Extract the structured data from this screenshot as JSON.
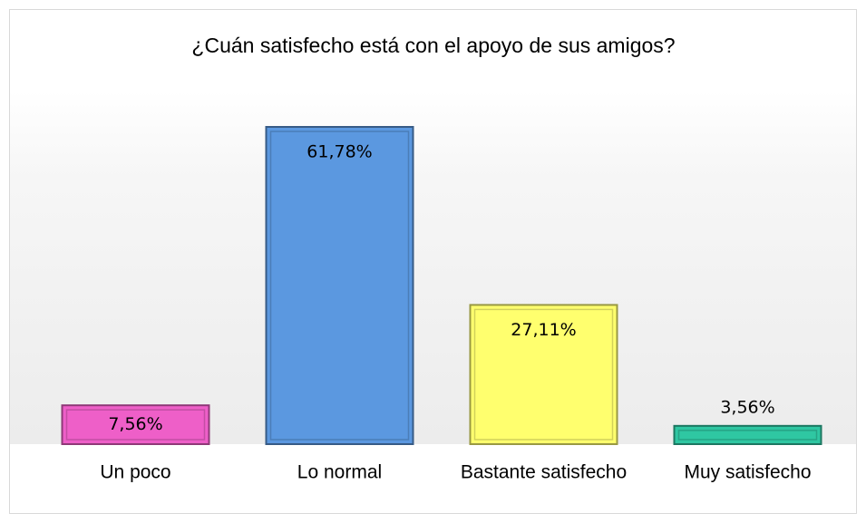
{
  "chart_data": {
    "type": "bar",
    "title": "¿Cuán satisfecho está con el apoyo de sus amigos?",
    "categories": [
      "Un poco",
      "Lo normal",
      "Bastante satisfecho",
      "Muy satisfecho"
    ],
    "values": [
      7.56,
      61.78,
      27.11,
      3.56
    ],
    "value_labels": [
      "7,56%",
      "61,78%",
      "27,11%",
      "3,56%"
    ],
    "colors": [
      "#ee5fc8",
      "#5b98e0",
      "#ffff6e",
      "#2fc7a2"
    ]
  }
}
